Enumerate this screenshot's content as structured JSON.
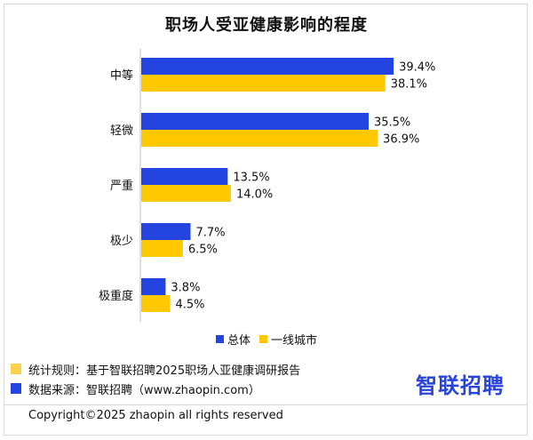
{
  "chart_data": {
    "type": "bar",
    "orientation": "horizontal",
    "title": "职场人受亚健康影响的程度",
    "categories": [
      "中等",
      "轻微",
      "严重",
      "极少",
      "极重度"
    ],
    "series": [
      {
        "name": "总体",
        "color": "#2344e0",
        "values": [
          39.4,
          35.5,
          13.5,
          7.7,
          3.8
        ]
      },
      {
        "name": "一线城市",
        "color": "#ffc800",
        "values": [
          38.1,
          36.9,
          14.0,
          6.5,
          4.5
        ]
      }
    ],
    "value_suffix": "%",
    "xlim": [
      0,
      45
    ],
    "grid": false,
    "legend_position": "bottom"
  },
  "notes": [
    {
      "text": "统计规则：基于智联招聘2025职场人亚健康调研报告",
      "color": "#ffd24d"
    },
    {
      "text": "数据来源：智联招聘（www.zhaopin.com）",
      "color": "#2344e0"
    }
  ],
  "logo": "智联招聘",
  "footer": "Copyright©2025 zhaopin all rights reserved"
}
